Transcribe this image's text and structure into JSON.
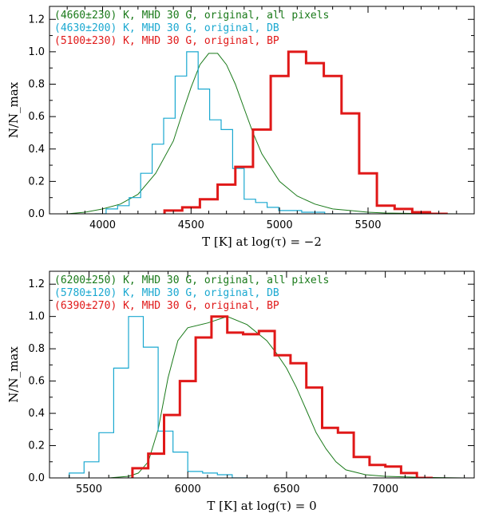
{
  "chart_data": [
    {
      "type": "line",
      "title": "",
      "xlabel": "T [K] at log(τ) = −2",
      "ylabel": "N/N_max",
      "xlim": [
        3700,
        6100
      ],
      "ylim": [
        0,
        1.28
      ],
      "xticks": [
        4000,
        4500,
        5000,
        5500
      ],
      "yticks": [
        0.0,
        0.2,
        0.4,
        0.6,
        0.8,
        1.0,
        1.2
      ],
      "legend": [
        {
          "label": "(4660±230) K, MHD 30 G, original, all pixels",
          "color": "#1a7a1a"
        },
        {
          "label": "(4630±200) K, MHD 30 G, original, DB",
          "color": "#1aa8d0"
        },
        {
          "label": "(5100±230) K, MHD 30 G, original, BP",
          "color": "#e01818"
        }
      ],
      "series": [
        {
          "name": "all pixels",
          "kind": "curve",
          "color": "#1a7a1a",
          "width": 1,
          "x": [
            3800,
            3900,
            4000,
            4100,
            4200,
            4300,
            4400,
            4450,
            4500,
            4550,
            4600,
            4650,
            4700,
            4750,
            4800,
            4850,
            4900,
            5000,
            5100,
            5200,
            5300,
            5400,
            5500,
            5600,
            5800,
            6000
          ],
          "y": [
            0.0,
            0.01,
            0.03,
            0.06,
            0.12,
            0.25,
            0.45,
            0.62,
            0.78,
            0.92,
            0.99,
            0.99,
            0.92,
            0.8,
            0.65,
            0.5,
            0.37,
            0.2,
            0.11,
            0.06,
            0.03,
            0.02,
            0.01,
            0.005,
            0.002,
            0.0
          ]
        },
        {
          "name": "DB",
          "kind": "step",
          "color": "#1aa8d0",
          "width": 1.2,
          "bin_width": 65,
          "bin_left": [
            3955,
            4020,
            4085,
            4150,
            4215,
            4280,
            4345,
            4410,
            4475,
            4540,
            4605,
            4670,
            4735,
            4800,
            4865,
            4930,
            4995,
            5060,
            5125,
            5190,
            5255,
            5320,
            5385,
            5450
          ],
          "values": [
            0.0,
            0.03,
            0.05,
            0.1,
            0.25,
            0.43,
            0.59,
            0.85,
            1.0,
            0.77,
            0.58,
            0.52,
            0.28,
            0.09,
            0.07,
            0.04,
            0.02,
            0.02,
            0.01,
            0.01,
            0.0,
            0.0,
            0.0,
            0.0
          ]
        },
        {
          "name": "BP",
          "kind": "step",
          "color": "#e01818",
          "width": 3,
          "bin_width": 100,
          "bin_left": [
            4350,
            4450,
            4550,
            4650,
            4750,
            4850,
            4950,
            5050,
            5150,
            5250,
            5350,
            5450,
            5550,
            5650,
            5750,
            5850
          ],
          "values": [
            0.02,
            0.04,
            0.09,
            0.18,
            0.29,
            0.52,
            0.85,
            1.0,
            0.93,
            0.85,
            0.62,
            0.25,
            0.05,
            0.03,
            0.01,
            0.0
          ]
        }
      ]
    },
    {
      "type": "line",
      "title": "",
      "xlabel": "T [K] at log(τ) = 0",
      "ylabel": "N/N_max",
      "xlim": [
        5300,
        7450
      ],
      "ylim": [
        0,
        1.28
      ],
      "xticks": [
        5500,
        6000,
        6500,
        7000
      ],
      "yticks": [
        0.0,
        0.2,
        0.4,
        0.6,
        0.8,
        1.0,
        1.2
      ],
      "legend": [
        {
          "label": "(6200±250) K, MHD 30 G, original, all pixels",
          "color": "#1a7a1a"
        },
        {
          "label": "(5780±120) K, MHD 30 G, original, DB",
          "color": "#1aa8d0"
        },
        {
          "label": "(6390±270) K, MHD 30 G, original, BP",
          "color": "#e01818"
        }
      ],
      "series": [
        {
          "name": "all pixels",
          "kind": "curve",
          "color": "#1a7a1a",
          "width": 1,
          "x": [
            5600,
            5700,
            5750,
            5800,
            5850,
            5900,
            5950,
            6000,
            6100,
            6200,
            6300,
            6400,
            6450,
            6500,
            6550,
            6600,
            6650,
            6700,
            6750,
            6800,
            6900,
            7000,
            7200,
            7400
          ],
          "y": [
            0.0,
            0.01,
            0.03,
            0.1,
            0.3,
            0.62,
            0.85,
            0.93,
            0.96,
            1.0,
            0.95,
            0.85,
            0.77,
            0.68,
            0.56,
            0.42,
            0.28,
            0.18,
            0.1,
            0.05,
            0.02,
            0.01,
            0.003,
            0.0
          ]
        },
        {
          "name": "DB",
          "kind": "step",
          "color": "#1aa8d0",
          "width": 1.2,
          "bin_width": 75,
          "bin_left": [
            5400,
            5475,
            5550,
            5625,
            5700,
            5775,
            5850,
            5925,
            6000,
            6075,
            6150,
            6225
          ],
          "values": [
            0.03,
            0.1,
            0.28,
            0.68,
            1.0,
            0.81,
            0.29,
            0.16,
            0.04,
            0.03,
            0.02,
            0.0
          ]
        },
        {
          "name": "BP",
          "kind": "step",
          "color": "#e01818",
          "width": 3,
          "bin_width": 80,
          "bin_left": [
            5720,
            5800,
            5880,
            5960,
            6040,
            6120,
            6200,
            6280,
            6360,
            6440,
            6520,
            6600,
            6680,
            6760,
            6840,
            6920,
            7000,
            7080,
            7160
          ],
          "values": [
            0.06,
            0.15,
            0.39,
            0.6,
            0.87,
            1.0,
            0.9,
            0.89,
            0.91,
            0.76,
            0.71,
            0.56,
            0.31,
            0.28,
            0.13,
            0.08,
            0.07,
            0.03,
            0.0
          ]
        }
      ]
    }
  ]
}
